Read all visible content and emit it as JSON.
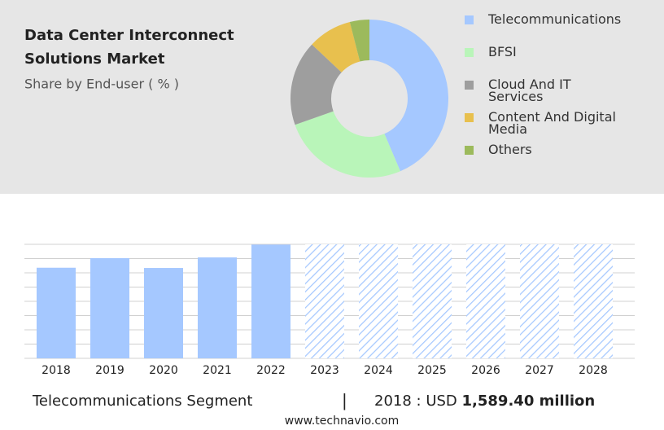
{
  "chart_data": [
    {
      "type": "pie",
      "title": "Data Center Interconnect",
      "title_line2": "Solutions Market",
      "subtitle": "Share by End-user ( % )",
      "categories": [
        "Telecommunications",
        "BFSI",
        "Cloud And IT Services",
        "Content And Digital Media",
        "Others"
      ],
      "values": [
        43.6,
        26,
        17.4,
        9,
        4
      ],
      "colors": [
        "#a5c8ff",
        "#b9f5b9",
        "#9e9e9e",
        "#e8c04e",
        "#9cba5c"
      ]
    },
    {
      "type": "bar",
      "categories": [
        "2018",
        "2019",
        "2020",
        "2021",
        "2022",
        "2023",
        "2024",
        "2025",
        "2026",
        "2027",
        "2028"
      ],
      "values": [
        1589.4,
        1757,
        1585,
        1770,
        1995,
        null,
        null,
        null,
        null,
        null,
        null
      ],
      "color": "#a5c8ff",
      "ylim": [
        0,
        2000
      ],
      "yticks": [
        0,
        250,
        500,
        750,
        1000,
        1250,
        1500,
        1750,
        2000
      ],
      "grid": true
    }
  ],
  "footer": {
    "segment": "Telecommunications Segment",
    "separator": "|",
    "year_currency": "2018 : USD",
    "value": "1,589.40 million",
    "website": "www.technavio.com"
  }
}
